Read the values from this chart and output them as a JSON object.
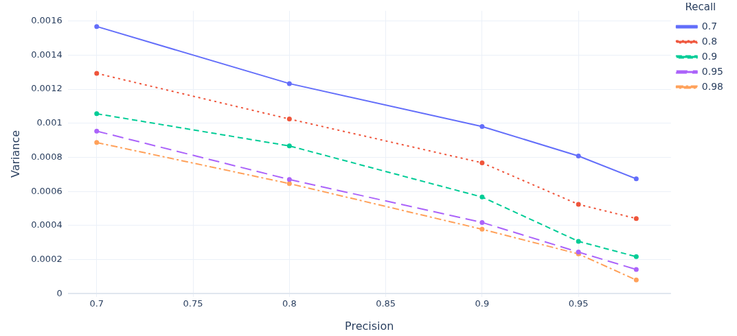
{
  "chart_data": {
    "type": "line",
    "xlabel": "Precision",
    "ylabel": "Variance",
    "legend_title": "Recall",
    "legend": "top right",
    "grid": true,
    "marker": "circle",
    "x": [
      0.7,
      0.8,
      0.9,
      0.95,
      0.98
    ],
    "xlim": [
      0.685,
      0.998
    ],
    "xticks": [
      0.7,
      0.75,
      0.8,
      0.85,
      0.9,
      0.95
    ],
    "ylim": [
      -2e-05,
      0.00166
    ],
    "yticks": [
      0,
      0.0002,
      0.0004,
      0.0006,
      0.0008,
      0.001,
      0.0012,
      0.0014,
      0.0016
    ],
    "series": [
      {
        "name": "0.7",
        "color": "#636efa",
        "line_style": "solid",
        "values": [
          0.001568,
          0.001233,
          0.000981,
          0.000808,
          0.000674
        ]
      },
      {
        "name": "0.8",
        "color": "#ef553b",
        "line_style": "dotted",
        "values": [
          0.001293,
          0.001025,
          0.000768,
          0.000524,
          0.000441
        ]
      },
      {
        "name": "0.9",
        "color": "#00cc96",
        "line_style": "dashed",
        "values": [
          0.001056,
          0.000867,
          0.000567,
          0.000307,
          0.000217
        ]
      },
      {
        "name": "0.95",
        "color": "#ab63fa",
        "line_style": "longdash",
        "values": [
          0.000954,
          0.00067,
          0.000418,
          0.000244,
          0.000142
        ]
      },
      {
        "name": "0.98",
        "color": "#ffa15a",
        "line_style": "dashdot",
        "values": [
          0.000887,
          0.000646,
          0.000378,
          0.000233,
          8e-05
        ]
      }
    ]
  }
}
